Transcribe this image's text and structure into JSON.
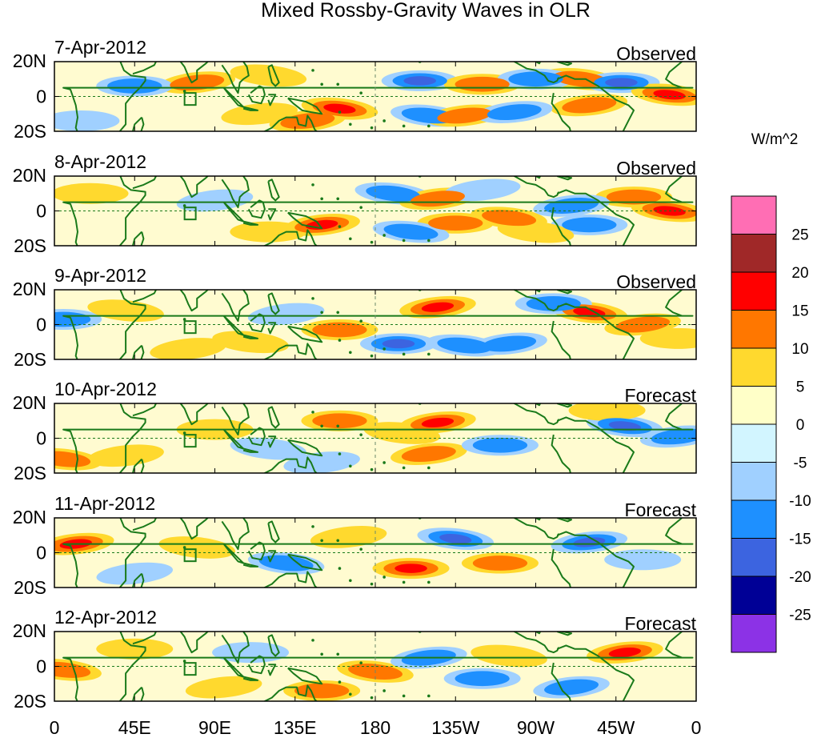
{
  "chart_data": {
    "type": "heatmap",
    "title": "Mixed Rossby-Gravity Waves in OLR",
    "units_label": "W/m^2",
    "x_ticks": [
      "0",
      "45E",
      "90E",
      "135E",
      "180",
      "135W",
      "90W",
      "45W",
      "0"
    ],
    "y_ticks": [
      "20N",
      "0",
      "20S"
    ],
    "lat_range": [
      -20,
      20
    ],
    "lon_range": [
      0,
      360
    ],
    "colorbar": {
      "levels": [
        "25",
        "20",
        "15",
        "10",
        "5",
        "0",
        "-5",
        "-10",
        "-15",
        "-20",
        "-25"
      ],
      "colors": [
        "#ff6eb4",
        "#a02828",
        "#ff0000",
        "#ff7700",
        "#ffd92e",
        "#ffffc8",
        "#d2f5ff",
        "#a0d0ff",
        "#1e90ff",
        "#3c64e0",
        "#000096",
        "#8c32e6"
      ]
    },
    "panels": [
      {
        "date": "7-Apr-2012",
        "status": "Observed",
        "anomalies": [
          {
            "lon": 80,
            "lat": 8,
            "value": 10
          },
          {
            "lon": 45,
            "lat": 6,
            "value": -10
          },
          {
            "lon": 160,
            "lat": -7,
            "value": 15
          },
          {
            "lon": 142,
            "lat": -14,
            "value": 10
          },
          {
            "lon": 205,
            "lat": 9,
            "value": -15
          },
          {
            "lon": 210,
            "lat": -11,
            "value": -10
          },
          {
            "lon": 230,
            "lat": -11,
            "value": 10
          },
          {
            "lon": 240,
            "lat": 7,
            "value": 10
          },
          {
            "lon": 295,
            "lat": 10,
            "value": 10
          },
          {
            "lon": 300,
            "lat": -5,
            "value": 10
          },
          {
            "lon": 318,
            "lat": 8,
            "value": -15
          },
          {
            "lon": 345,
            "lat": 1,
            "value": 15
          },
          {
            "lon": 258,
            "lat": -9,
            "value": -10
          },
          {
            "lon": 270,
            "lat": 10,
            "value": -10
          },
          {
            "lon": 120,
            "lat": 12,
            "value": 5
          },
          {
            "lon": 115,
            "lat": -10,
            "value": 5
          },
          {
            "lon": 15,
            "lat": -14,
            "value": -5
          }
        ]
      },
      {
        "date": "8-Apr-2012",
        "status": "Observed",
        "anomalies": [
          {
            "lon": 150,
            "lat": -8,
            "value": 15
          },
          {
            "lon": 120,
            "lat": -12,
            "value": 5
          },
          {
            "lon": 190,
            "lat": 10,
            "value": -10
          },
          {
            "lon": 215,
            "lat": 7,
            "value": 10
          },
          {
            "lon": 225,
            "lat": -7,
            "value": 10
          },
          {
            "lon": 255,
            "lat": -4,
            "value": 10
          },
          {
            "lon": 240,
            "lat": 12,
            "value": -5
          },
          {
            "lon": 325,
            "lat": 8,
            "value": 10
          },
          {
            "lon": 345,
            "lat": 0,
            "value": 15
          },
          {
            "lon": 290,
            "lat": 3,
            "value": -10
          },
          {
            "lon": 300,
            "lat": -8,
            "value": -10
          },
          {
            "lon": 270,
            "lat": -12,
            "value": 5
          },
          {
            "lon": 90,
            "lat": 6,
            "value": -5
          },
          {
            "lon": 20,
            "lat": 10,
            "value": 5
          },
          {
            "lon": 200,
            "lat": -12,
            "value": -10
          }
        ]
      },
      {
        "date": "9-Apr-2012",
        "status": "Observed",
        "anomalies": [
          {
            "lon": 215,
            "lat": 10,
            "value": 15
          },
          {
            "lon": 160,
            "lat": -3,
            "value": 10
          },
          {
            "lon": 300,
            "lat": 7,
            "value": 15
          },
          {
            "lon": 330,
            "lat": 0,
            "value": 10
          },
          {
            "lon": 193,
            "lat": -11,
            "value": -15
          },
          {
            "lon": 230,
            "lat": -12,
            "value": -10
          },
          {
            "lon": 255,
            "lat": -11,
            "value": -10
          },
          {
            "lon": 280,
            "lat": 12,
            "value": -10
          },
          {
            "lon": 110,
            "lat": -10,
            "value": 5
          },
          {
            "lon": 75,
            "lat": -14,
            "value": 5
          },
          {
            "lon": 5,
            "lat": 3,
            "value": -10
          },
          {
            "lon": 40,
            "lat": 8,
            "value": 5
          },
          {
            "lon": 130,
            "lat": 6,
            "value": -5
          },
          {
            "lon": 350,
            "lat": -8,
            "value": 5
          }
        ]
      },
      {
        "date": "10-Apr-2012",
        "status": "Forecast",
        "anomalies": [
          {
            "lon": 215,
            "lat": 9,
            "value": 15
          },
          {
            "lon": 160,
            "lat": 10,
            "value": 10
          },
          {
            "lon": 195,
            "lat": 3,
            "value": 5
          },
          {
            "lon": 210,
            "lat": -9,
            "value": 10
          },
          {
            "lon": 250,
            "lat": -4,
            "value": -10
          },
          {
            "lon": 320,
            "lat": 7,
            "value": -15
          },
          {
            "lon": 350,
            "lat": 1,
            "value": -10
          },
          {
            "lon": 310,
            "lat": 16,
            "value": 5
          },
          {
            "lon": 120,
            "lat": -6,
            "value": -5
          },
          {
            "lon": 40,
            "lat": -10,
            "value": 5
          },
          {
            "lon": 90,
            "lat": 5,
            "value": 5
          },
          {
            "lon": 5,
            "lat": -12,
            "value": 10
          },
          {
            "lon": 150,
            "lat": -14,
            "value": -5
          }
        ]
      },
      {
        "date": "11-Apr-2012",
        "status": "Forecast",
        "anomalies": [
          {
            "lon": 12,
            "lat": 5,
            "value": 15
          },
          {
            "lon": 200,
            "lat": -9,
            "value": 15
          },
          {
            "lon": 225,
            "lat": 8,
            "value": -15
          },
          {
            "lon": 300,
            "lat": 6,
            "value": -15
          },
          {
            "lon": 250,
            "lat": -6,
            "value": 10
          },
          {
            "lon": 130,
            "lat": -6,
            "value": -10
          },
          {
            "lon": 165,
            "lat": 9,
            "value": 5
          },
          {
            "lon": 330,
            "lat": -4,
            "value": -5
          },
          {
            "lon": 80,
            "lat": 3,
            "value": 5
          },
          {
            "lon": 45,
            "lat": -12,
            "value": -5
          }
        ]
      },
      {
        "date": "12-Apr-2012",
        "status": "Forecast",
        "anomalies": [
          {
            "lon": 320,
            "lat": 8,
            "value": 15
          },
          {
            "lon": 150,
            "lat": -14,
            "value": 10
          },
          {
            "lon": 180,
            "lat": -3,
            "value": 10
          },
          {
            "lon": 210,
            "lat": 5,
            "value": -10
          },
          {
            "lon": 240,
            "lat": -7,
            "value": -10
          },
          {
            "lon": 255,
            "lat": 6,
            "value": 5
          },
          {
            "lon": 95,
            "lat": -12,
            "value": 5
          },
          {
            "lon": 110,
            "lat": 8,
            "value": -5
          },
          {
            "lon": 5,
            "lat": -2,
            "value": 10
          },
          {
            "lon": 290,
            "lat": -12,
            "value": -10
          },
          {
            "lon": 45,
            "lat": 10,
            "value": 5
          }
        ]
      }
    ]
  }
}
